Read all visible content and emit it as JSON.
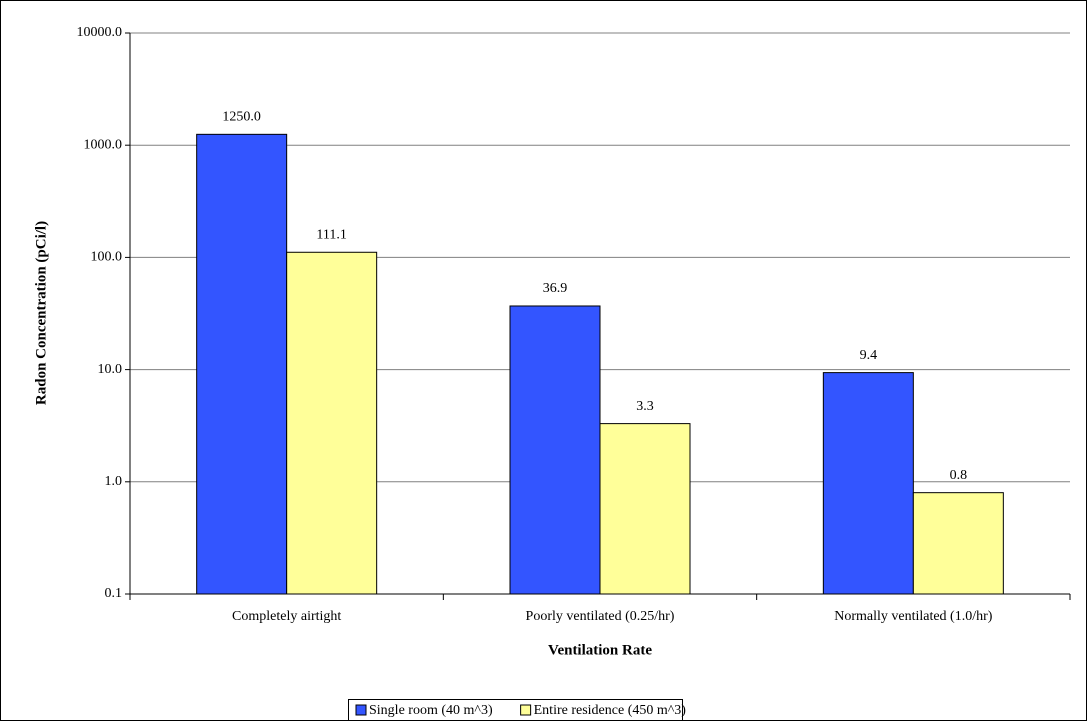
{
  "chart_data": {
    "type": "bar",
    "categories": [
      "Completely airtight",
      "Poorly ventilated (0.25/hr)",
      "Normally ventilated (1.0/hr)"
    ],
    "series": [
      {
        "name": "Single room (40 m^3)",
        "color": "#3355ff",
        "values": [
          1250,
          36.9,
          9.4
        ],
        "value_labels": [
          "1250.0",
          "36.9",
          "9.4"
        ]
      },
      {
        "name": "Entire residence (450 m^3)",
        "color": "#ffff99",
        "values": [
          111.1,
          3.3,
          0.8
        ]
      }
    ],
    "y_label": "Radon Concentration (pCi/l)",
    "x_label": "Ventilation Rate",
    "log_scale": true,
    "ylim": [
      0.1,
      10000
    ],
    "yticks": [
      {
        "value": 0.1,
        "label": "0.1"
      },
      {
        "value": 1,
        "label": "1.0"
      },
      {
        "value": 10,
        "label": "10.0"
      },
      {
        "value": 100,
        "label": "100.0"
      },
      {
        "value": 1000,
        "label": "1000.0"
      },
      {
        "value": 10000,
        "label": "10000.0"
      }
    ],
    "grid": true,
    "legend": "bottom"
  }
}
